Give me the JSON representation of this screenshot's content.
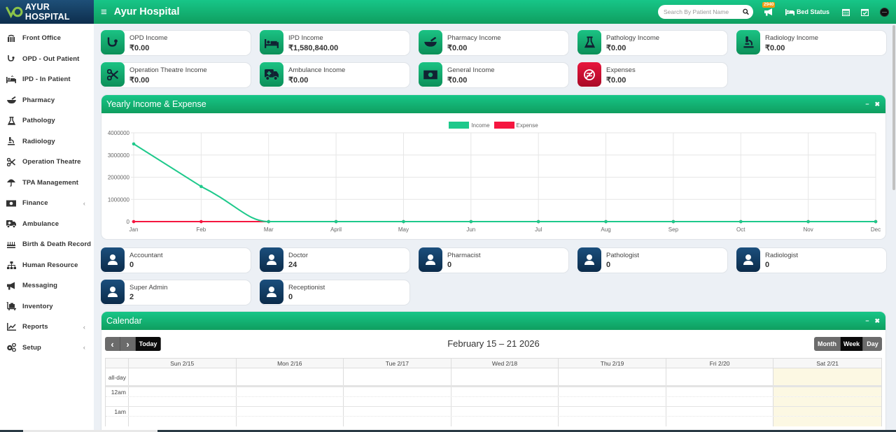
{
  "header": {
    "brand": "AYUR HOSPITAL",
    "title": "Ayur Hospital",
    "menu_icon": "hamburger-icon",
    "search_placeholder": "Search By Patient Name",
    "notification_count": "2940",
    "bed_status_label": "Bed Status"
  },
  "sidebar": {
    "items": [
      {
        "label": "Front Office",
        "icon": "front-office-icon",
        "has_submenu": false
      },
      {
        "label": "OPD - Out Patient",
        "icon": "stethoscope-icon",
        "has_submenu": false
      },
      {
        "label": "IPD - In Patient",
        "icon": "bed-icon",
        "has_submenu": false
      },
      {
        "label": "Pharmacy",
        "icon": "mortar-pestle-icon",
        "has_submenu": false
      },
      {
        "label": "Pathology",
        "icon": "flask-icon",
        "has_submenu": false
      },
      {
        "label": "Radiology",
        "icon": "microscope-icon",
        "has_submenu": false
      },
      {
        "label": "Operation Theatre",
        "icon": "scissors-icon",
        "has_submenu": false
      },
      {
        "label": "TPA Management",
        "icon": "umbrella-icon",
        "has_submenu": false
      },
      {
        "label": "Finance",
        "icon": "money-icon",
        "has_submenu": true
      },
      {
        "label": "Ambulance",
        "icon": "ambulance-icon",
        "has_submenu": false
      },
      {
        "label": "Birth & Death Record",
        "icon": "birthday-cake-icon",
        "has_submenu": false
      },
      {
        "label": "Human Resource",
        "icon": "sitemap-icon",
        "has_submenu": false
      },
      {
        "label": "Messaging",
        "icon": "bullhorn-icon",
        "has_submenu": false
      },
      {
        "label": "Inventory",
        "icon": "luggage-cart-icon",
        "has_submenu": false
      },
      {
        "label": "Reports",
        "icon": "line-chart-icon",
        "has_submenu": true
      },
      {
        "label": "Setup",
        "icon": "gears-icon",
        "has_submenu": true
      }
    ]
  },
  "income_cards": [
    {
      "label": "OPD Income",
      "value": "₹0.00",
      "icon": "stethoscope-icon",
      "color": "green"
    },
    {
      "label": "IPD Income",
      "value": "₹1,580,840.00",
      "icon": "bed-icon",
      "color": "green"
    },
    {
      "label": "Pharmacy Income",
      "value": "₹0.00",
      "icon": "mortar-pestle-icon",
      "color": "green"
    },
    {
      "label": "Pathology Income",
      "value": "₹0.00",
      "icon": "flask-icon",
      "color": "green"
    },
    {
      "label": "Radiology Income",
      "value": "₹0.00",
      "icon": "microscope-icon",
      "color": "green"
    },
    {
      "label": "Operation Theatre Income",
      "value": "₹0.00",
      "icon": "scissors-icon",
      "color": "green"
    },
    {
      "label": "Ambulance Income",
      "value": "₹0.00",
      "icon": "ambulance-icon",
      "color": "green"
    },
    {
      "label": "General Income",
      "value": "₹0.00",
      "icon": "money-icon",
      "color": "green"
    },
    {
      "label": "Expenses",
      "value": "₹0.00",
      "icon": "no-money-icon",
      "color": "red"
    }
  ],
  "yearly_panel": {
    "title": "Yearly Income & Expense",
    "minimize": "−",
    "close": "✖"
  },
  "chart_data": {
    "type": "line",
    "title": "Yearly Income & Expense",
    "xlabel": "",
    "ylabel": "",
    "categories": [
      "Jan",
      "Feb",
      "Mar",
      "April",
      "May",
      "Jun",
      "Jul",
      "Aug",
      "Sep",
      "Oct",
      "Nov",
      "Dec"
    ],
    "series": [
      {
        "name": "Income",
        "color": "#1ec98b",
        "values": [
          3500000,
          1580840,
          0,
          0,
          0,
          0,
          0,
          0,
          0,
          0,
          0,
          0
        ]
      },
      {
        "name": "Expense",
        "color": "#f5163f",
        "values": [
          0,
          0,
          0,
          0,
          0,
          0,
          0,
          0,
          0,
          0,
          0,
          0
        ]
      }
    ],
    "yticks": [
      "4000000",
      "3000000",
      "2000000",
      "1000000",
      "0"
    ],
    "ylim": [
      0,
      4000000
    ],
    "grid": true,
    "legend_position": "top"
  },
  "staff_cards": [
    {
      "label": "Accountant",
      "value": "0"
    },
    {
      "label": "Doctor",
      "value": "24"
    },
    {
      "label": "Pharmacist",
      "value": "0"
    },
    {
      "label": "Pathologist",
      "value": "0"
    },
    {
      "label": "Radiologist",
      "value": "0"
    },
    {
      "label": "Super Admin",
      "value": "2"
    },
    {
      "label": "Receptionist",
      "value": "0"
    }
  ],
  "calendar": {
    "title": "Calendar",
    "minimize": "−",
    "close": "✖",
    "range_title": "February 15 – 21 2026",
    "prev": "‹",
    "next": "›",
    "today_label": "Today",
    "views": [
      {
        "label": "Month",
        "active": false
      },
      {
        "label": "Week",
        "active": true
      },
      {
        "label": "Day",
        "active": false
      }
    ],
    "days": [
      "Sun 2/15",
      "Mon 2/16",
      "Tue 2/17",
      "Wed 2/18",
      "Thu 2/19",
      "Fri 2/20",
      "Sat 2/21"
    ],
    "all_day_label": "all-day",
    "times": [
      "12am",
      "1am"
    ]
  },
  "colors": {
    "accent_green": "#12b074",
    "expense_red": "#d10f33",
    "staff_blue": "#123c62",
    "today_highlight": "#fcf8e3"
  }
}
